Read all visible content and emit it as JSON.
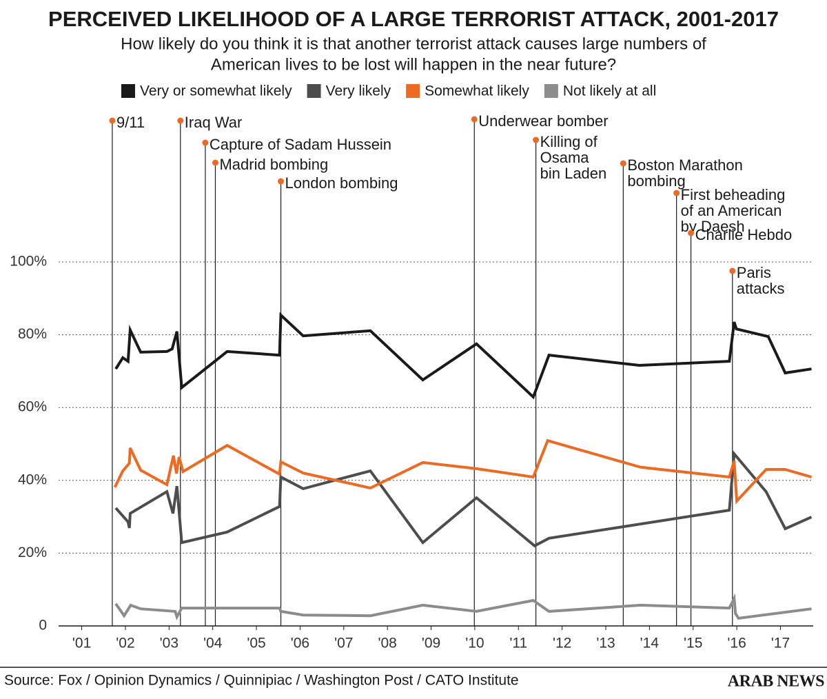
{
  "chart_data": {
    "type": "line",
    "title": "PERCEIVED LIKELIHOOD OF A LARGE TERRORIST ATTACK, 2001-2017",
    "subtitle": [
      "How likely do you think it is that another terrorist attack causes large numbers of",
      "American lives to be lost will happen in the near future?"
    ],
    "source": "Source: Fox / Opinion Dynamics / Quinnipiac / Washington Post / CATO Institute",
    "logo": "ARAB NEWS",
    "xlim": [
      2000.47,
      2017.75
    ],
    "ylim": [
      0,
      100
    ],
    "xticks": [
      {
        "value": 2001,
        "label": "'01"
      },
      {
        "value": 2002,
        "label": "'02"
      },
      {
        "value": 2003,
        "label": "'03"
      },
      {
        "value": 2004,
        "label": "'04"
      },
      {
        "value": 2005,
        "label": "'05"
      },
      {
        "value": 2006,
        "label": "'06"
      },
      {
        "value": 2007,
        "label": "'07"
      },
      {
        "value": 2008,
        "label": "'08"
      },
      {
        "value": 2009,
        "label": "'09"
      },
      {
        "value": 2010,
        "label": "'10"
      },
      {
        "value": 2011,
        "label": "'11"
      },
      {
        "value": 2012,
        "label": "'12"
      },
      {
        "value": 2013,
        "label": "'13"
      },
      {
        "value": 2014,
        "label": "'14"
      },
      {
        "value": 2015,
        "label": "'15"
      },
      {
        "value": 2016,
        "label": "'16"
      },
      {
        "value": 2017,
        "label": "'17"
      }
    ],
    "yticks": [
      0,
      {
        "value": 20,
        "label": "20%"
      },
      {
        "value": 40,
        "label": "40%"
      },
      {
        "value": 60,
        "label": "60%"
      },
      {
        "value": 80,
        "label": "80%"
      },
      {
        "value": 100,
        "label": "100%"
      }
    ],
    "grid": true,
    "series": [
      {
        "name": "Very or somewhat likely",
        "color": "#1a1a1a",
        "x": [
          2001.78,
          2001.94,
          2002.06,
          2002.11,
          2002.35,
          2002.95,
          2003.07,
          2003.18,
          2003.29,
          2004.33,
          2005.53,
          2005.56,
          2006.07,
          2007.61,
          2008.81,
          2010.04,
          2011.34,
          2011.7,
          2013.77,
          2015.83,
          2015.94,
          2015.99,
          2016.72,
          2017.11,
          2017.71
        ],
        "values": [
          70.6,
          73.7,
          72.7,
          81.3,
          75.2,
          75.4,
          76.1,
          80.9,
          65.5,
          75.4,
          74.4,
          85.4,
          79.7,
          81.1,
          67.6,
          77.5,
          62.9,
          74.4,
          71.6,
          72.7,
          83.5,
          81.6,
          79.5,
          69.5,
          70.6
        ]
      },
      {
        "name": "Very likely",
        "color": "#4d4d4d",
        "x": [
          2001.78,
          2002.06,
          2002.09,
          2002.11,
          2002.95,
          2003.09,
          2003.18,
          2003.29,
          2004.33,
          2005.53,
          2005.56,
          2006.07,
          2007.61,
          2008.81,
          2010.04,
          2011.37,
          2011.7,
          2015.83,
          2015.94,
          2016.67,
          2017.11,
          2017.71
        ],
        "values": [
          32.4,
          28.6,
          26.9,
          30.9,
          36.9,
          30.9,
          38.4,
          22.9,
          25.8,
          32.8,
          40.9,
          37.7,
          42.6,
          22.9,
          35.2,
          22.0,
          24.1,
          31.8,
          47.3,
          36.9,
          26.7,
          29.9
        ]
      },
      {
        "name": "Somewhat likely",
        "color": "#ee6a22",
        "x": [
          2001.76,
          2001.94,
          2002.09,
          2002.11,
          2002.2,
          2002.35,
          2002.95,
          2003.1,
          2003.17,
          2003.23,
          2003.32,
          2004.33,
          2005.53,
          2005.56,
          2006.07,
          2007.61,
          2008.81,
          2010.04,
          2011.34,
          2011.67,
          2013.8,
          2015.83,
          2015.94,
          2016.0,
          2016.67,
          2017.11,
          2017.71
        ],
        "values": [
          38.1,
          42.6,
          44.7,
          48.9,
          46.6,
          42.8,
          38.8,
          46.8,
          41.9,
          46.4,
          42.4,
          49.6,
          41.7,
          45.1,
          42.0,
          37.9,
          44.9,
          43.2,
          40.9,
          50.9,
          43.6,
          40.9,
          45.3,
          34.3,
          43.0,
          43.0,
          40.9
        ]
      },
      {
        "name": "Not likely at all",
        "color": "#8c8c8c",
        "x": [
          2001.78,
          2001.97,
          2002.12,
          2002.35,
          2003.14,
          2003.18,
          2003.29,
          2005.53,
          2005.56,
          2006.07,
          2007.61,
          2008.81,
          2010.04,
          2011.34,
          2011.7,
          2013.8,
          2015.83,
          2015.94,
          2015.97,
          2016.04,
          2017.71
        ],
        "values": [
          6.1,
          2.8,
          5.7,
          4.7,
          4.0,
          2.5,
          4.9,
          4.9,
          4.0,
          3.0,
          2.8,
          5.7,
          4.0,
          7.0,
          4.0,
          5.7,
          4.9,
          7.6,
          3.4,
          2.1,
          4.7
        ]
      }
    ],
    "annotations": [
      {
        "x": 2001.7,
        "lines": [
          "9/11"
        ]
      },
      {
        "x": 2003.26,
        "lines": [
          "Iraq War"
        ]
      },
      {
        "x": 2003.83,
        "lines": [
          "Capture of Sadam Hussein"
        ]
      },
      {
        "x": 2004.06,
        "lines": [
          "Madrid bombing"
        ]
      },
      {
        "x": 2005.56,
        "lines": [
          "London bombing"
        ]
      },
      {
        "x": 2009.99,
        "lines": [
          "Underwear bomber"
        ]
      },
      {
        "x": 2011.4,
        "lines": [
          "Killing of",
          "Osama",
          "bin Laden"
        ]
      },
      {
        "x": 2013.4,
        "lines": [
          "Boston Marathon",
          "bombing"
        ]
      },
      {
        "x": 2014.62,
        "lines": [
          "First beheading",
          "of an American",
          "by Daesh"
        ]
      },
      {
        "x": 2014.95,
        "lines": [
          "Charlie Hebdo"
        ]
      },
      {
        "x": 2015.9,
        "lines": [
          "Paris",
          "attacks"
        ]
      }
    ]
  }
}
